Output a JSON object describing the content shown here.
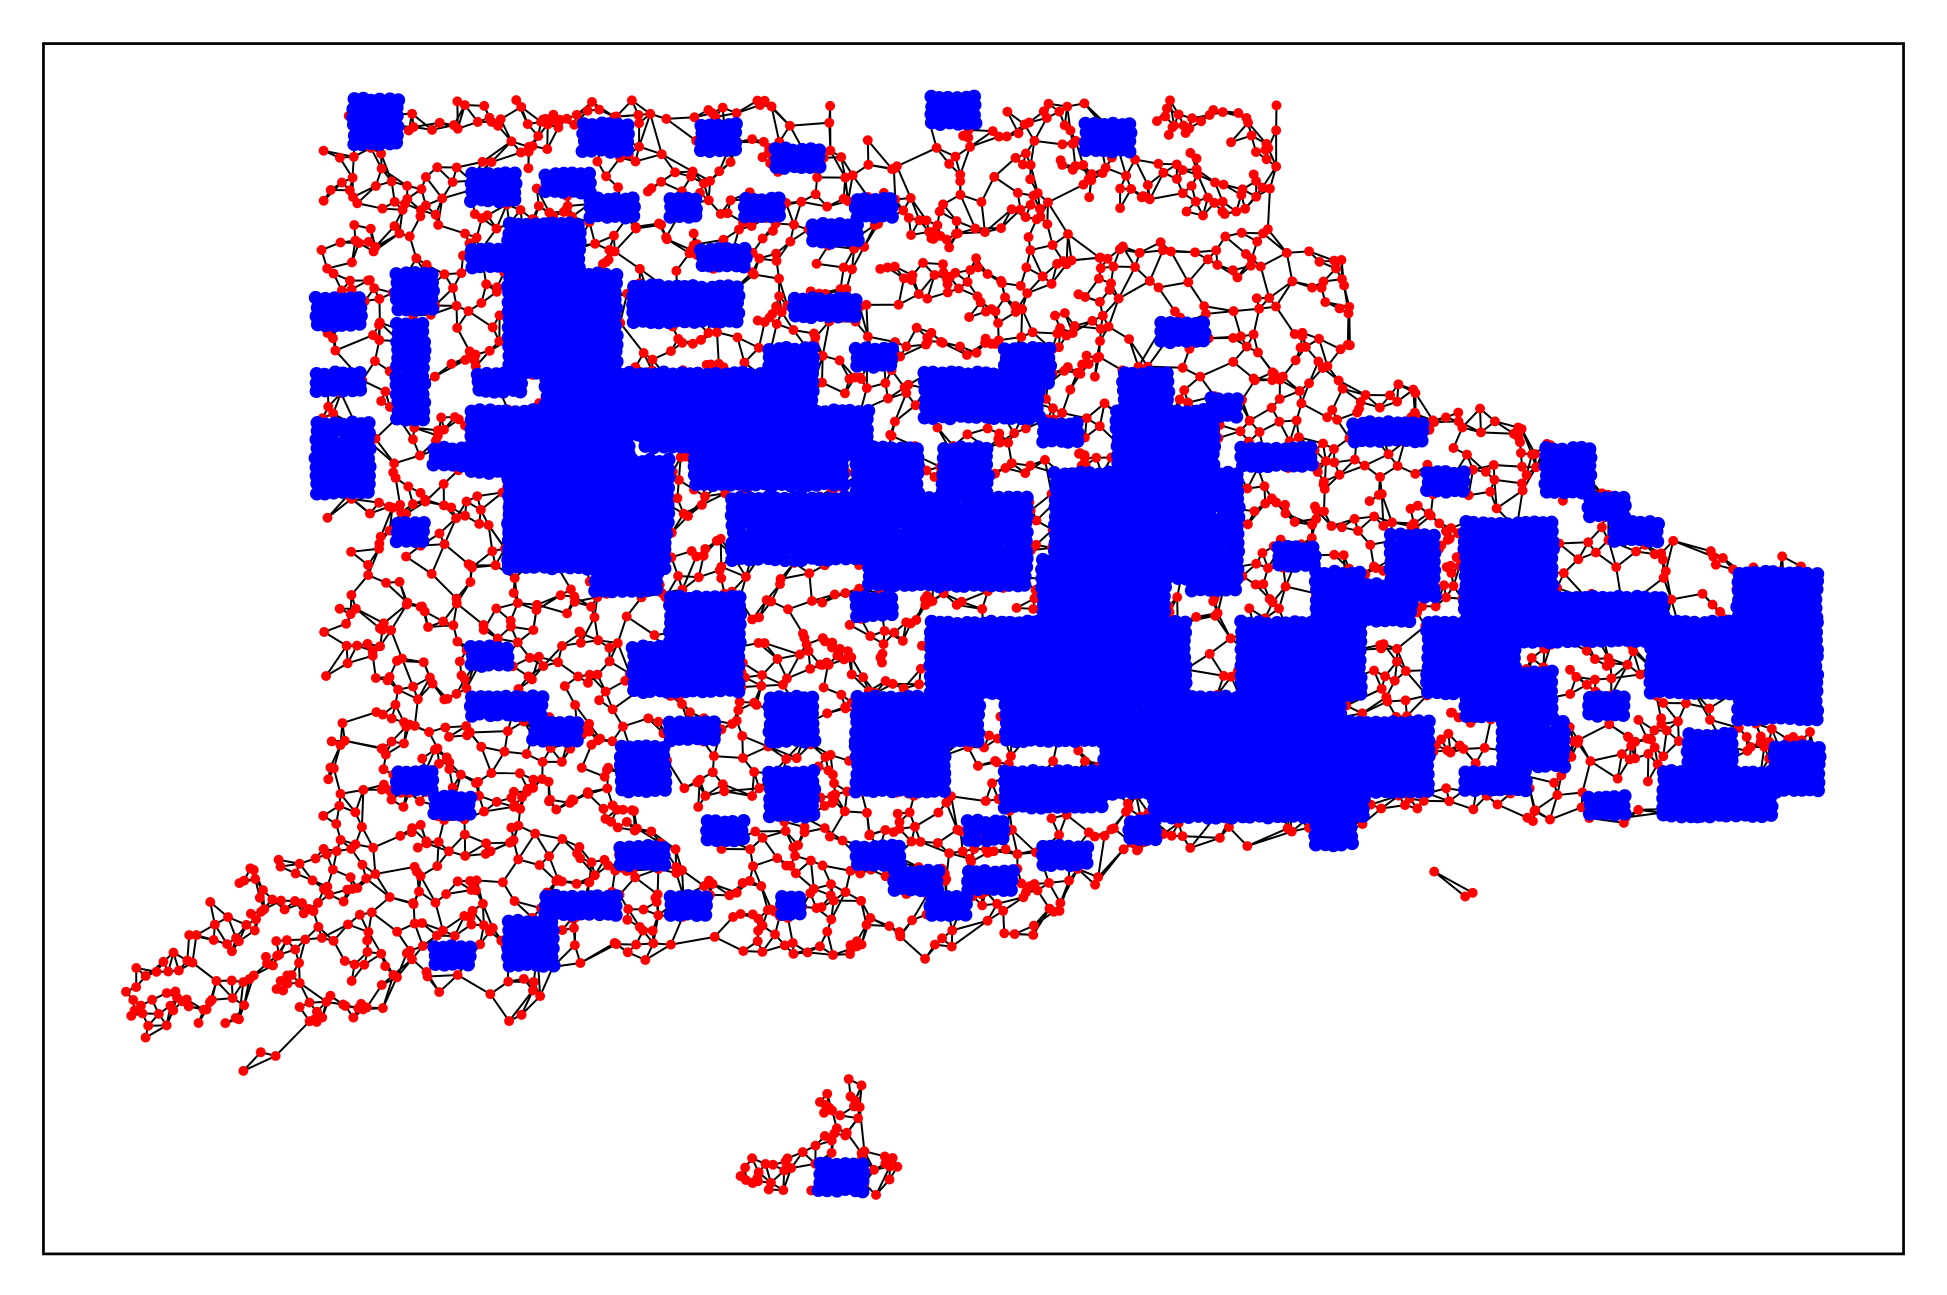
{
  "graph": {
    "node_color": "#ff0000",
    "cluster_color": "#0000ff",
    "edge_color": "#000000",
    "frame_color": "#000000"
  }
}
